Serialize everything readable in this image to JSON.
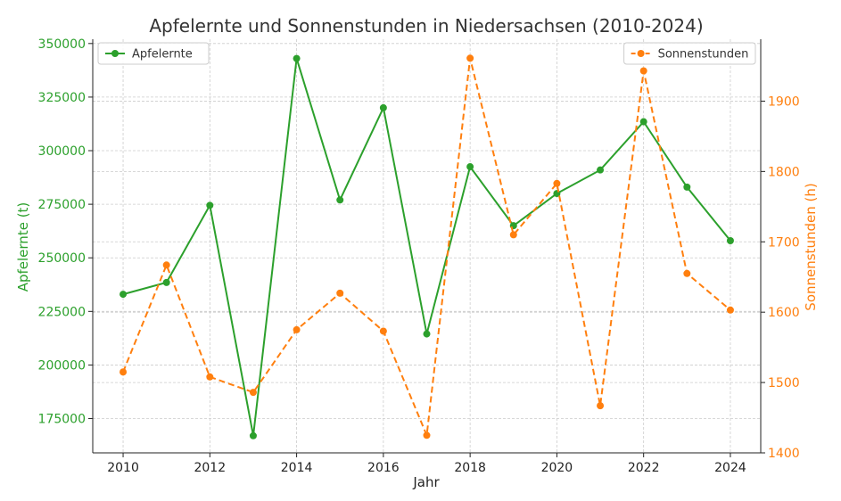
{
  "chart_data": {
    "type": "line",
    "title": "Apfelernte und Sonnenstunden in Niedersachsen (2010-2024)",
    "xlabel": "Jahr",
    "x": [
      2010,
      2011,
      2012,
      2013,
      2014,
      2015,
      2016,
      2017,
      2018,
      2019,
      2020,
      2021,
      2022,
      2023,
      2024
    ],
    "x_ticks": [
      2010,
      2012,
      2014,
      2016,
      2018,
      2020,
      2022,
      2024
    ],
    "xlim": [
      2009.3,
      2024.7
    ],
    "grid": true,
    "left_axis": {
      "label": "Apfelernte (t)",
      "color": "#2ca02c",
      "ylim": [
        159000,
        352000
      ],
      "ticks": [
        175000,
        200000,
        225000,
        250000,
        275000,
        300000,
        325000,
        350000
      ]
    },
    "right_axis": {
      "label": "Sonnenstunden (h)",
      "color": "#ff7f0e",
      "ylim": [
        1400,
        1988
      ],
      "ticks": [
        1400,
        1500,
        1600,
        1700,
        1800,
        1900
      ]
    },
    "series": [
      {
        "name": "Apfelernte",
        "axis": "left",
        "color": "#2ca02c",
        "style": "solid",
        "legend_position": "top-left",
        "values": [
          233000,
          238500,
          274500,
          167000,
          343000,
          277000,
          320000,
          214500,
          292500,
          265000,
          280000,
          291000,
          313500,
          283000,
          258000
        ]
      },
      {
        "name": "Sonnenstunden",
        "axis": "right",
        "color": "#ff7f0e",
        "style": "dashed",
        "legend_position": "top-right",
        "values": [
          1515,
          1667,
          1508,
          1486,
          1575,
          1627,
          1573,
          1425,
          1961,
          1710,
          1783,
          1467,
          1943,
          1655,
          1603
        ]
      }
    ]
  }
}
